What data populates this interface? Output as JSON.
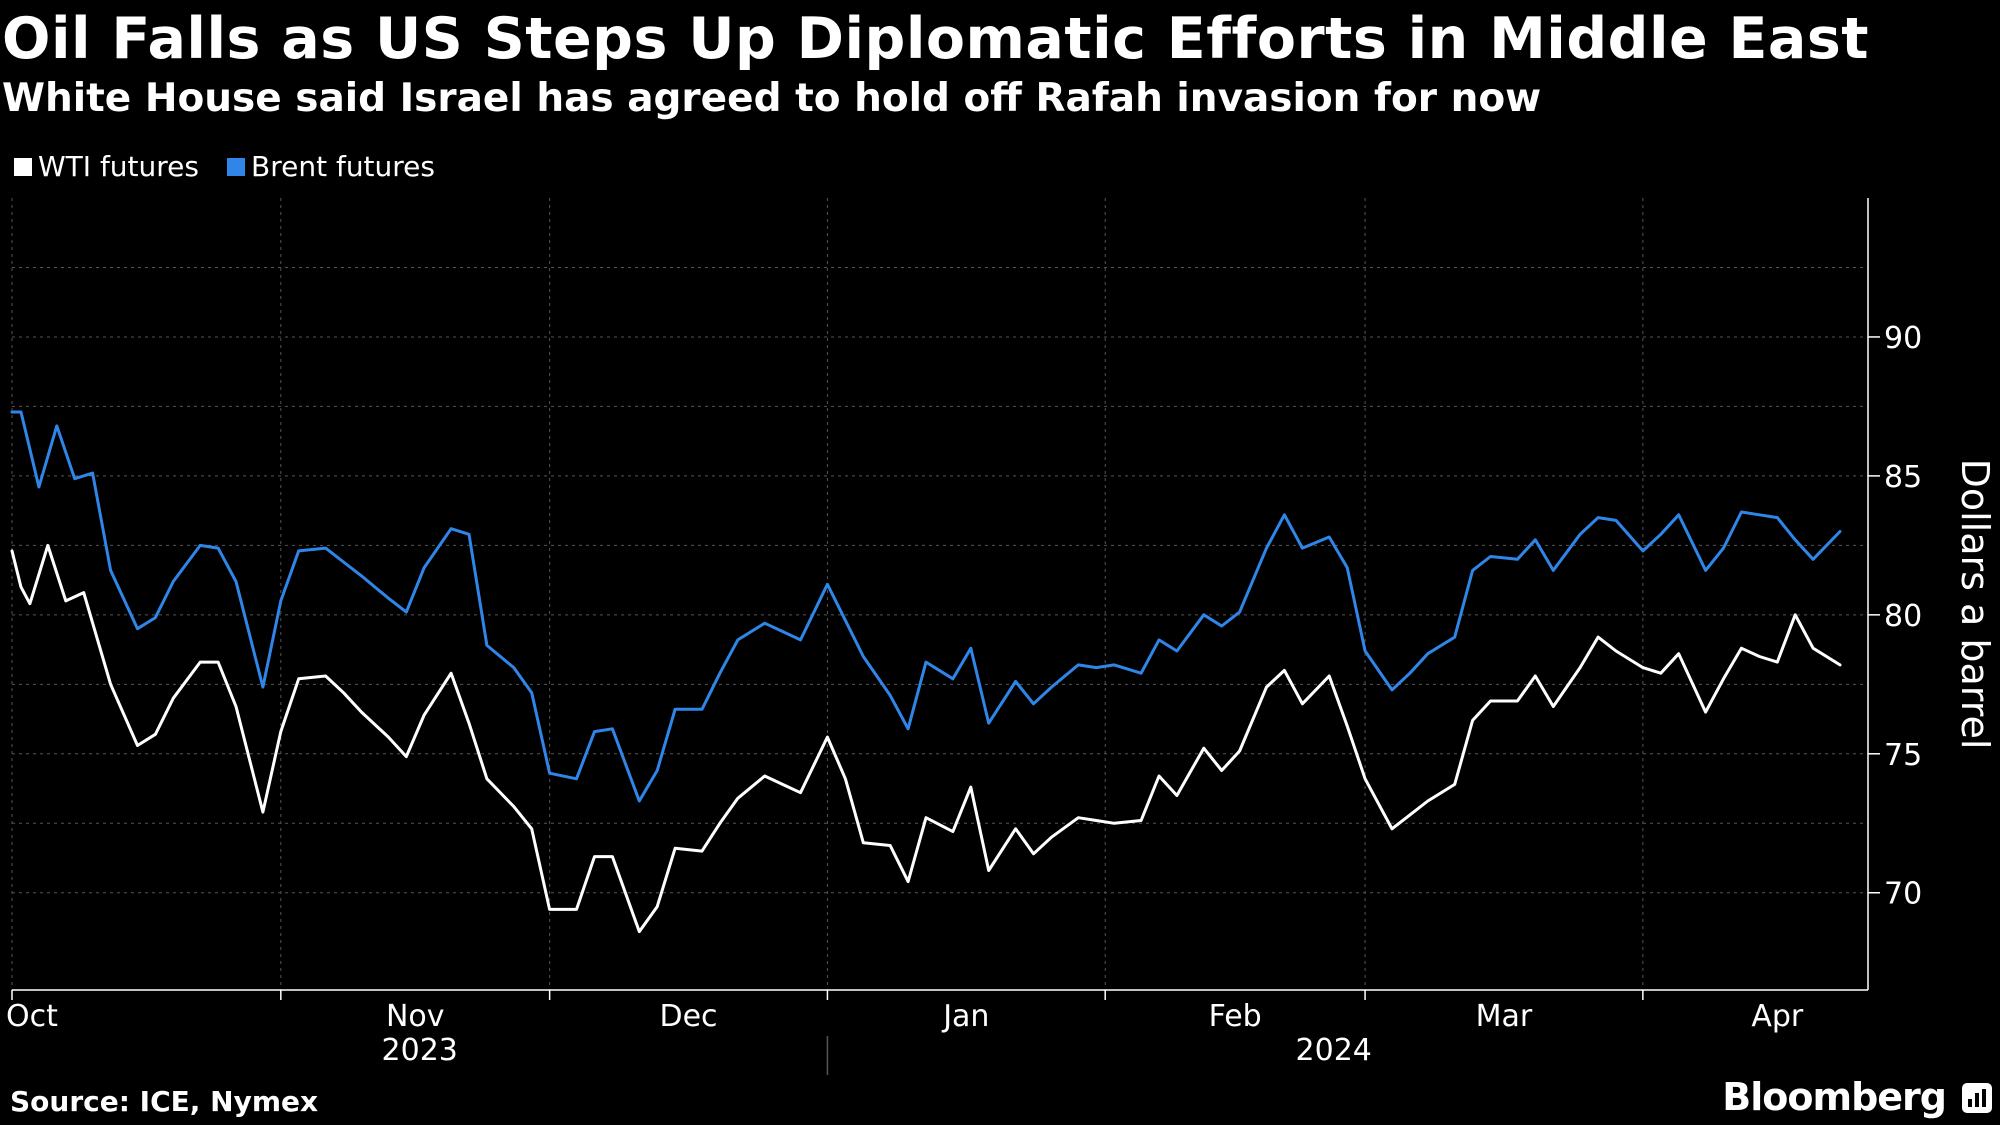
{
  "title": "Oil Falls as US Steps Up Diplomatic Efforts in Middle East",
  "subtitle": "White House said Israel has agreed to hold off Rafah invasion for now",
  "source": "Source: ICE, Nymex",
  "brand": "Bloomberg",
  "colors": {
    "wti": "#ffffff",
    "brent": "#2f86e8",
    "grid": "#555555",
    "axis": "#ffffff"
  },
  "chart_data": {
    "type": "line",
    "title": "Oil Falls as US Steps Up Diplomatic Efforts in Middle East",
    "subtitle": "White House said Israel has agreed to hold off Rafah invasion for now",
    "xlabel": "",
    "ylabel": "Dollars a barrel",
    "x_range": [
      "2023-10-02",
      "2024-04-23"
    ],
    "ylim": [
      66.5,
      95
    ],
    "yticks": [
      70,
      75,
      80,
      85,
      90
    ],
    "y_axis_side": "right",
    "grid": true,
    "legend": "top-left",
    "month_ticks": [
      {
        "label": "Oct",
        "date": "2023-10-01"
      },
      {
        "label": "Nov",
        "date": "2023-11-01"
      },
      {
        "label": "Dec",
        "date": "2023-12-01"
      },
      {
        "label": "Jan",
        "date": "2024-01-01"
      },
      {
        "label": "Feb",
        "date": "2024-02-01"
      },
      {
        "label": "Mar",
        "date": "2024-03-01"
      },
      {
        "label": "Apr",
        "date": "2024-04-01"
      }
    ],
    "year_labels": [
      {
        "label": "2023",
        "from": "2023-10-02",
        "to": "2024-01-01"
      },
      {
        "label": "2024",
        "from": "2024-01-01",
        "to": "2024-04-23"
      }
    ],
    "series": [
      {
        "name": "WTI futures",
        "color": "#ffffff",
        "points": [
          [
            "2023-10-02",
            82.3
          ],
          [
            "2023-10-03",
            81.0
          ],
          [
            "2023-10-04",
            80.4
          ],
          [
            "2023-10-06",
            82.5
          ],
          [
            "2023-10-08",
            80.5
          ],
          [
            "2023-10-10",
            80.8
          ],
          [
            "2023-10-13",
            77.5
          ],
          [
            "2023-10-16",
            75.3
          ],
          [
            "2023-10-18",
            75.7
          ],
          [
            "2023-10-20",
            77.0
          ],
          [
            "2023-10-23",
            78.3
          ],
          [
            "2023-10-25",
            78.3
          ],
          [
            "2023-10-27",
            76.7
          ],
          [
            "2023-10-30",
            72.9
          ],
          [
            "2023-11-01",
            75.8
          ],
          [
            "2023-11-03",
            77.7
          ],
          [
            "2023-11-06",
            77.8
          ],
          [
            "2023-11-08",
            77.2
          ],
          [
            "2023-11-10",
            76.5
          ],
          [
            "2023-11-13",
            75.6
          ],
          [
            "2023-11-15",
            74.9
          ],
          [
            "2023-11-17",
            76.4
          ],
          [
            "2023-11-20",
            77.9
          ],
          [
            "2023-11-22",
            76.1
          ],
          [
            "2023-11-24",
            74.1
          ],
          [
            "2023-11-27",
            73.1
          ],
          [
            "2023-11-29",
            72.3
          ],
          [
            "2023-12-01",
            69.4
          ],
          [
            "2023-12-04",
            69.4
          ],
          [
            "2023-12-06",
            71.3
          ],
          [
            "2023-12-08",
            71.3
          ],
          [
            "2023-12-11",
            68.6
          ],
          [
            "2023-12-13",
            69.5
          ],
          [
            "2023-12-15",
            71.6
          ],
          [
            "2023-12-18",
            71.5
          ],
          [
            "2023-12-20",
            72.5
          ],
          [
            "2023-12-22",
            73.4
          ],
          [
            "2023-12-25",
            74.2
          ],
          [
            "2023-12-27",
            73.9
          ],
          [
            "2023-12-29",
            73.6
          ],
          [
            "2024-01-01",
            75.6
          ],
          [
            "2024-01-03",
            74.1
          ],
          [
            "2024-01-05",
            71.8
          ],
          [
            "2024-01-08",
            71.7
          ],
          [
            "2024-01-10",
            70.4
          ],
          [
            "2024-01-12",
            72.7
          ],
          [
            "2024-01-15",
            72.2
          ],
          [
            "2024-01-17",
            73.8
          ],
          [
            "2024-01-19",
            70.8
          ],
          [
            "2024-01-22",
            72.3
          ],
          [
            "2024-01-24",
            71.4
          ],
          [
            "2024-01-26",
            72.0
          ],
          [
            "2024-01-29",
            72.7
          ],
          [
            "2024-01-31",
            72.6
          ],
          [
            "2024-02-02",
            72.5
          ],
          [
            "2024-02-05",
            72.6
          ],
          [
            "2024-02-07",
            74.2
          ],
          [
            "2024-02-09",
            73.5
          ],
          [
            "2024-02-12",
            75.2
          ],
          [
            "2024-02-14",
            74.4
          ],
          [
            "2024-02-16",
            75.1
          ],
          [
            "2024-02-19",
            77.4
          ],
          [
            "2024-02-21",
            78.0
          ],
          [
            "2024-02-23",
            76.8
          ],
          [
            "2024-02-26",
            77.8
          ],
          [
            "2024-02-28",
            76.0
          ],
          [
            "2024-03-01",
            74.1
          ],
          [
            "2024-03-04",
            72.3
          ],
          [
            "2024-03-06",
            72.8
          ],
          [
            "2024-03-08",
            73.3
          ],
          [
            "2024-03-11",
            73.9
          ],
          [
            "2024-03-13",
            76.2
          ],
          [
            "2024-03-15",
            76.9
          ],
          [
            "2024-03-18",
            76.9
          ],
          [
            "2024-03-20",
            77.8
          ],
          [
            "2024-03-22",
            76.7
          ],
          [
            "2024-03-25",
            78.1
          ],
          [
            "2024-03-27",
            79.2
          ],
          [
            "2024-03-29",
            78.7
          ],
          [
            "2024-04-01",
            78.1
          ],
          [
            "2024-04-03",
            77.9
          ],
          [
            "2024-04-05",
            78.6
          ],
          [
            "2024-04-08",
            76.5
          ],
          [
            "2024-04-10",
            77.7
          ],
          [
            "2024-04-12",
            78.8
          ],
          [
            "2024-04-14",
            78.5
          ],
          [
            "2024-04-16",
            78.3
          ],
          [
            "2024-04-18",
            80.0
          ],
          [
            "2024-04-20",
            78.8
          ],
          [
            "2024-04-23",
            78.2
          ]
        ]
      },
      {
        "name": "Brent futures",
        "color": "#2f86e8",
        "points": [
          [
            "2023-10-02",
            87.3
          ],
          [
            "2023-10-03",
            87.3
          ],
          [
            "2023-10-05",
            84.6
          ],
          [
            "2023-10-07",
            86.8
          ],
          [
            "2023-10-09",
            84.9
          ],
          [
            "2023-10-11",
            85.1
          ],
          [
            "2023-10-13",
            81.6
          ],
          [
            "2023-10-16",
            79.5
          ],
          [
            "2023-10-18",
            79.9
          ],
          [
            "2023-10-20",
            81.2
          ],
          [
            "2023-10-23",
            82.5
          ],
          [
            "2023-10-25",
            82.4
          ],
          [
            "2023-10-27",
            81.2
          ],
          [
            "2023-10-30",
            77.4
          ],
          [
            "2023-11-01",
            80.5
          ],
          [
            "2023-11-03",
            82.3
          ],
          [
            "2023-11-06",
            82.4
          ],
          [
            "2023-11-08",
            81.9
          ],
          [
            "2023-11-10",
            81.4
          ],
          [
            "2023-11-13",
            80.6
          ],
          [
            "2023-11-15",
            80.1
          ],
          [
            "2023-11-17",
            81.7
          ],
          [
            "2023-11-20",
            83.1
          ],
          [
            "2023-11-22",
            82.9
          ],
          [
            "2023-11-24",
            78.9
          ],
          [
            "2023-11-27",
            78.1
          ],
          [
            "2023-11-29",
            77.2
          ],
          [
            "2023-12-01",
            74.3
          ],
          [
            "2023-12-04",
            74.1
          ],
          [
            "2023-12-06",
            75.8
          ],
          [
            "2023-12-08",
            75.9
          ],
          [
            "2023-12-11",
            73.3
          ],
          [
            "2023-12-13",
            74.4
          ],
          [
            "2023-12-15",
            76.6
          ],
          [
            "2023-12-18",
            76.6
          ],
          [
            "2023-12-20",
            77.9
          ],
          [
            "2023-12-22",
            79.1
          ],
          [
            "2023-12-25",
            79.7
          ],
          [
            "2023-12-27",
            79.4
          ],
          [
            "2023-12-29",
            79.1
          ],
          [
            "2024-01-01",
            81.1
          ],
          [
            "2024-01-03",
            79.8
          ],
          [
            "2024-01-05",
            78.5
          ],
          [
            "2024-01-08",
            77.1
          ],
          [
            "2024-01-10",
            75.9
          ],
          [
            "2024-01-12",
            78.3
          ],
          [
            "2024-01-15",
            77.7
          ],
          [
            "2024-01-17",
            78.8
          ],
          [
            "2024-01-19",
            76.1
          ],
          [
            "2024-01-22",
            77.6
          ],
          [
            "2024-01-24",
            76.8
          ],
          [
            "2024-01-26",
            77.4
          ],
          [
            "2024-01-29",
            78.2
          ],
          [
            "2024-01-31",
            78.1
          ],
          [
            "2024-02-02",
            78.2
          ],
          [
            "2024-02-05",
            77.9
          ],
          [
            "2024-02-07",
            79.1
          ],
          [
            "2024-02-09",
            78.7
          ],
          [
            "2024-02-12",
            80.0
          ],
          [
            "2024-02-14",
            79.6
          ],
          [
            "2024-02-16",
            80.1
          ],
          [
            "2024-02-19",
            82.4
          ],
          [
            "2024-02-21",
            83.6
          ],
          [
            "2024-02-23",
            82.4
          ],
          [
            "2024-02-26",
            82.8
          ],
          [
            "2024-02-28",
            81.7
          ],
          [
            "2024-03-01",
            78.7
          ],
          [
            "2024-03-04",
            77.3
          ],
          [
            "2024-03-06",
            77.9
          ],
          [
            "2024-03-08",
            78.6
          ],
          [
            "2024-03-11",
            79.2
          ],
          [
            "2024-03-13",
            81.6
          ],
          [
            "2024-03-15",
            82.1
          ],
          [
            "2024-03-18",
            82.0
          ],
          [
            "2024-03-20",
            82.7
          ],
          [
            "2024-03-22",
            81.6
          ],
          [
            "2024-03-25",
            82.9
          ],
          [
            "2024-03-27",
            83.5
          ],
          [
            "2024-03-29",
            83.4
          ],
          [
            "2024-04-01",
            82.3
          ],
          [
            "2024-04-03",
            82.9
          ],
          [
            "2024-04-05",
            83.6
          ],
          [
            "2024-04-08",
            81.6
          ],
          [
            "2024-04-10",
            82.4
          ],
          [
            "2024-04-12",
            83.7
          ],
          [
            "2024-04-14",
            83.6
          ],
          [
            "2024-04-16",
            83.5
          ],
          [
            "2024-04-18",
            82.7
          ],
          [
            "2024-04-20",
            82.0
          ],
          [
            "2024-04-23",
            83.0
          ]
        ]
      }
    ]
  }
}
